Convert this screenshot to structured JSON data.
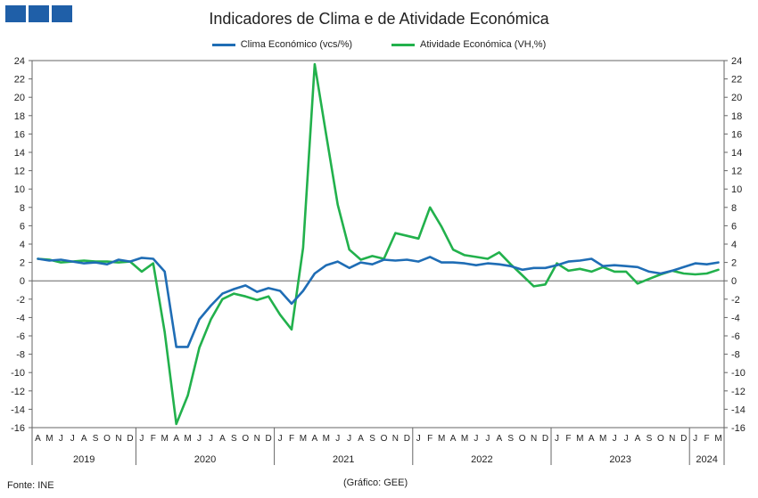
{
  "colors": {
    "logo": "#1f5fa8",
    "series1": "#1f6db5",
    "series2": "#22b14c",
    "axis": "#666666",
    "grid": "#bfbfbf"
  },
  "chart_data": {
    "type": "line",
    "title": "Indicadores de Clima e de Atividade Económica",
    "ylim": [
      -16,
      24
    ],
    "yticks": [
      24,
      22,
      20,
      18,
      16,
      14,
      12,
      10,
      8,
      6,
      4,
      2,
      0,
      -2,
      -4,
      -6,
      -8,
      -10,
      -12,
      -14,
      -16
    ],
    "y2ticks": [
      24,
      22,
      20,
      18,
      16,
      14,
      12,
      10,
      8,
      6,
      4,
      2,
      0,
      -2,
      -4,
      -6,
      -8,
      -10,
      -12,
      -14,
      -16
    ],
    "x": [
      "A",
      "M",
      "J",
      "J",
      "A",
      "S",
      "O",
      "N",
      "D",
      "J",
      "F",
      "M",
      "A",
      "M",
      "J",
      "J",
      "A",
      "S",
      "O",
      "N",
      "D",
      "J",
      "F",
      "M",
      "A",
      "M",
      "J",
      "J",
      "A",
      "S",
      "O",
      "N",
      "D",
      "J",
      "F",
      "M",
      "A",
      "M",
      "J",
      "J",
      "A",
      "S",
      "O",
      "N",
      "D",
      "J",
      "F",
      "M",
      "A",
      "M",
      "J",
      "J",
      "A",
      "S",
      "O",
      "N",
      "D",
      "J",
      "F",
      "M"
    ],
    "year_groups": [
      {
        "label": "2019",
        "start": 0,
        "end": 8
      },
      {
        "label": "2020",
        "start": 9,
        "end": 20
      },
      {
        "label": "2021",
        "start": 21,
        "end": 32
      },
      {
        "label": "2022",
        "start": 33,
        "end": 44
      },
      {
        "label": "2023",
        "start": 45,
        "end": 56
      },
      {
        "label": "2024",
        "start": 57,
        "end": 59
      }
    ],
    "series": [
      {
        "name": "Clima Económico (vcs/%)",
        "values": [
          2.4,
          2.2,
          2.3,
          2.1,
          1.9,
          2.0,
          1.8,
          2.3,
          2.1,
          2.5,
          2.4,
          1.0,
          -7.2,
          -7.2,
          -4.2,
          -2.7,
          -1.4,
          -0.9,
          -0.5,
          -1.2,
          -0.8,
          -1.1,
          -2.5,
          -1.1,
          0.8,
          1.7,
          2.1,
          1.4,
          2.0,
          1.8,
          2.3,
          2.2,
          2.3,
          2.1,
          2.6,
          2.0,
          2.0,
          1.9,
          1.7,
          1.9,
          1.8,
          1.6,
          1.2,
          1.4,
          1.4,
          1.7,
          2.1,
          2.2,
          2.4,
          1.6,
          1.7,
          1.6,
          1.5,
          1.0,
          0.8,
          1.1,
          1.5,
          1.9,
          1.8,
          2.0
        ]
      },
      {
        "name": "Atividade Económica (VH,%)",
        "values": [
          2.4,
          2.3,
          2.0,
          2.1,
          2.2,
          2.1,
          2.1,
          2.0,
          2.1,
          1.0,
          1.9,
          -5.6,
          -15.6,
          -12.5,
          -7.3,
          -4.2,
          -2.0,
          -1.4,
          -1.7,
          -2.1,
          -1.7,
          -3.7,
          -5.3,
          3.6,
          23.6,
          15.9,
          8.3,
          3.4,
          2.3,
          2.7,
          2.4,
          5.2,
          4.9,
          4.6,
          8.0,
          5.9,
          3.4,
          2.8,
          2.6,
          2.4,
          3.1,
          1.8,
          0.6,
          -0.6,
          -0.4,
          1.9,
          1.1,
          1.3,
          1.0,
          1.5,
          1.0,
          1.0,
          -0.3,
          0.2,
          0.7,
          1.1,
          0.8,
          0.7,
          0.8,
          1.2
        ]
      }
    ]
  },
  "legend": [
    {
      "label": "Clima Económico (vcs/%)"
    },
    {
      "label": "Atividade Económica (VH,%)"
    }
  ],
  "footer": {
    "source": "Fonte: INE",
    "credit": "(Gráfico: GEE)"
  }
}
